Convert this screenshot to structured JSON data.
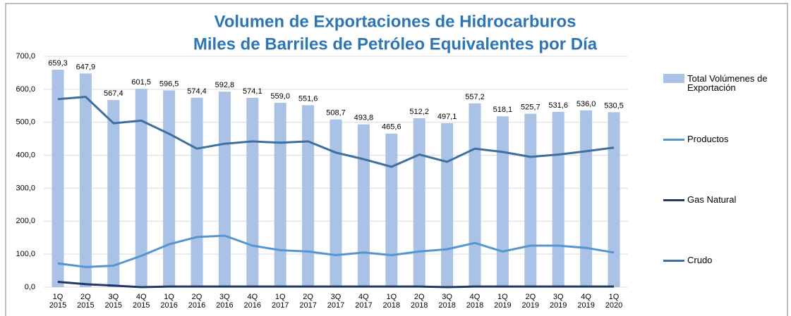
{
  "chart_data": {
    "type": "bar-line",
    "title": "Volumen de Exportaciones de Hidrocarburos",
    "subtitle": "Miles de Barriles de Petróleo Equivalentes por Día",
    "categories": [
      [
        "1Q",
        "2015"
      ],
      [
        "2Q",
        "2015"
      ],
      [
        "3Q",
        "2015"
      ],
      [
        "4Q",
        "2015"
      ],
      [
        "1Q",
        "2016"
      ],
      [
        "2Q",
        "2016"
      ],
      [
        "3Q",
        "2016"
      ],
      [
        "4Q",
        "2016"
      ],
      [
        "1Q",
        "2017"
      ],
      [
        "2Q",
        "2017"
      ],
      [
        "3Q",
        "2017"
      ],
      [
        "4Q",
        "2017"
      ],
      [
        "1Q",
        "2018"
      ],
      [
        "2Q",
        "2018"
      ],
      [
        "3Q",
        "2018"
      ],
      [
        "4Q",
        "2018"
      ],
      [
        "1Q",
        "2019"
      ],
      [
        "2Q",
        "2019"
      ],
      [
        "3Q",
        "2019"
      ],
      [
        "4Q",
        "2019"
      ],
      [
        "1Q",
        "2020"
      ]
    ],
    "series": [
      {
        "name": "Total Volúmenes de Exportación",
        "color": "#a9c2e6",
        "kind": "bar",
        "values": [
          659.3,
          647.9,
          567.4,
          601.5,
          596.5,
          574.4,
          592.8,
          574.1,
          559.0,
          551.6,
          508.7,
          493.8,
          465.6,
          512.2,
          497.1,
          557.2,
          518.1,
          525.7,
          531.6,
          536.0,
          530.5
        ],
        "value_labels": [
          "659,3",
          "647,9",
          "567,4",
          "601,5",
          "596,5",
          "574,4",
          "592,8",
          "574,1",
          "559,0",
          "551,6",
          "508,7",
          "493,8",
          "465,6",
          "512,2",
          "497,1",
          "557,2",
          "518,1",
          "525,7",
          "531,6",
          "536,0",
          "530,5"
        ]
      },
      {
        "name": "Productos",
        "color": "#5596d0",
        "kind": "line",
        "values": [
          72,
          61,
          65,
          95,
          130,
          152,
          156,
          126,
          112,
          108,
          97,
          105,
          97,
          108,
          115,
          134,
          108,
          126,
          126,
          119,
          105
        ]
      },
      {
        "name": "Gas Natural",
        "color": "#1f3864",
        "kind": "line",
        "values": [
          16,
          9,
          5,
          0,
          2,
          2,
          2,
          2,
          2,
          2,
          2,
          2,
          2,
          2,
          0,
          2,
          2,
          2,
          2,
          2,
          2
        ]
      },
      {
        "name": "Crudo",
        "color": "#3f6f9f",
        "kind": "line",
        "values": [
          570,
          577,
          497,
          505,
          465,
          420,
          435,
          442,
          438,
          442,
          408,
          388,
          365,
          402,
          380,
          420,
          410,
          395,
          402,
          412,
          423
        ]
      }
    ],
    "ylim": [
      0,
      700
    ],
    "yticks": [
      {
        "value": 0,
        "label": "0,0"
      },
      {
        "value": 100,
        "label": "100,0"
      },
      {
        "value": 200,
        "label": "200,0"
      },
      {
        "value": 300,
        "label": "300,0"
      },
      {
        "value": 400,
        "label": "400,0"
      },
      {
        "value": 500,
        "label": "500,0"
      },
      {
        "value": 600,
        "label": "600,0"
      },
      {
        "value": 700,
        "label": "700,0"
      }
    ],
    "grid": true,
    "legend": "right"
  }
}
